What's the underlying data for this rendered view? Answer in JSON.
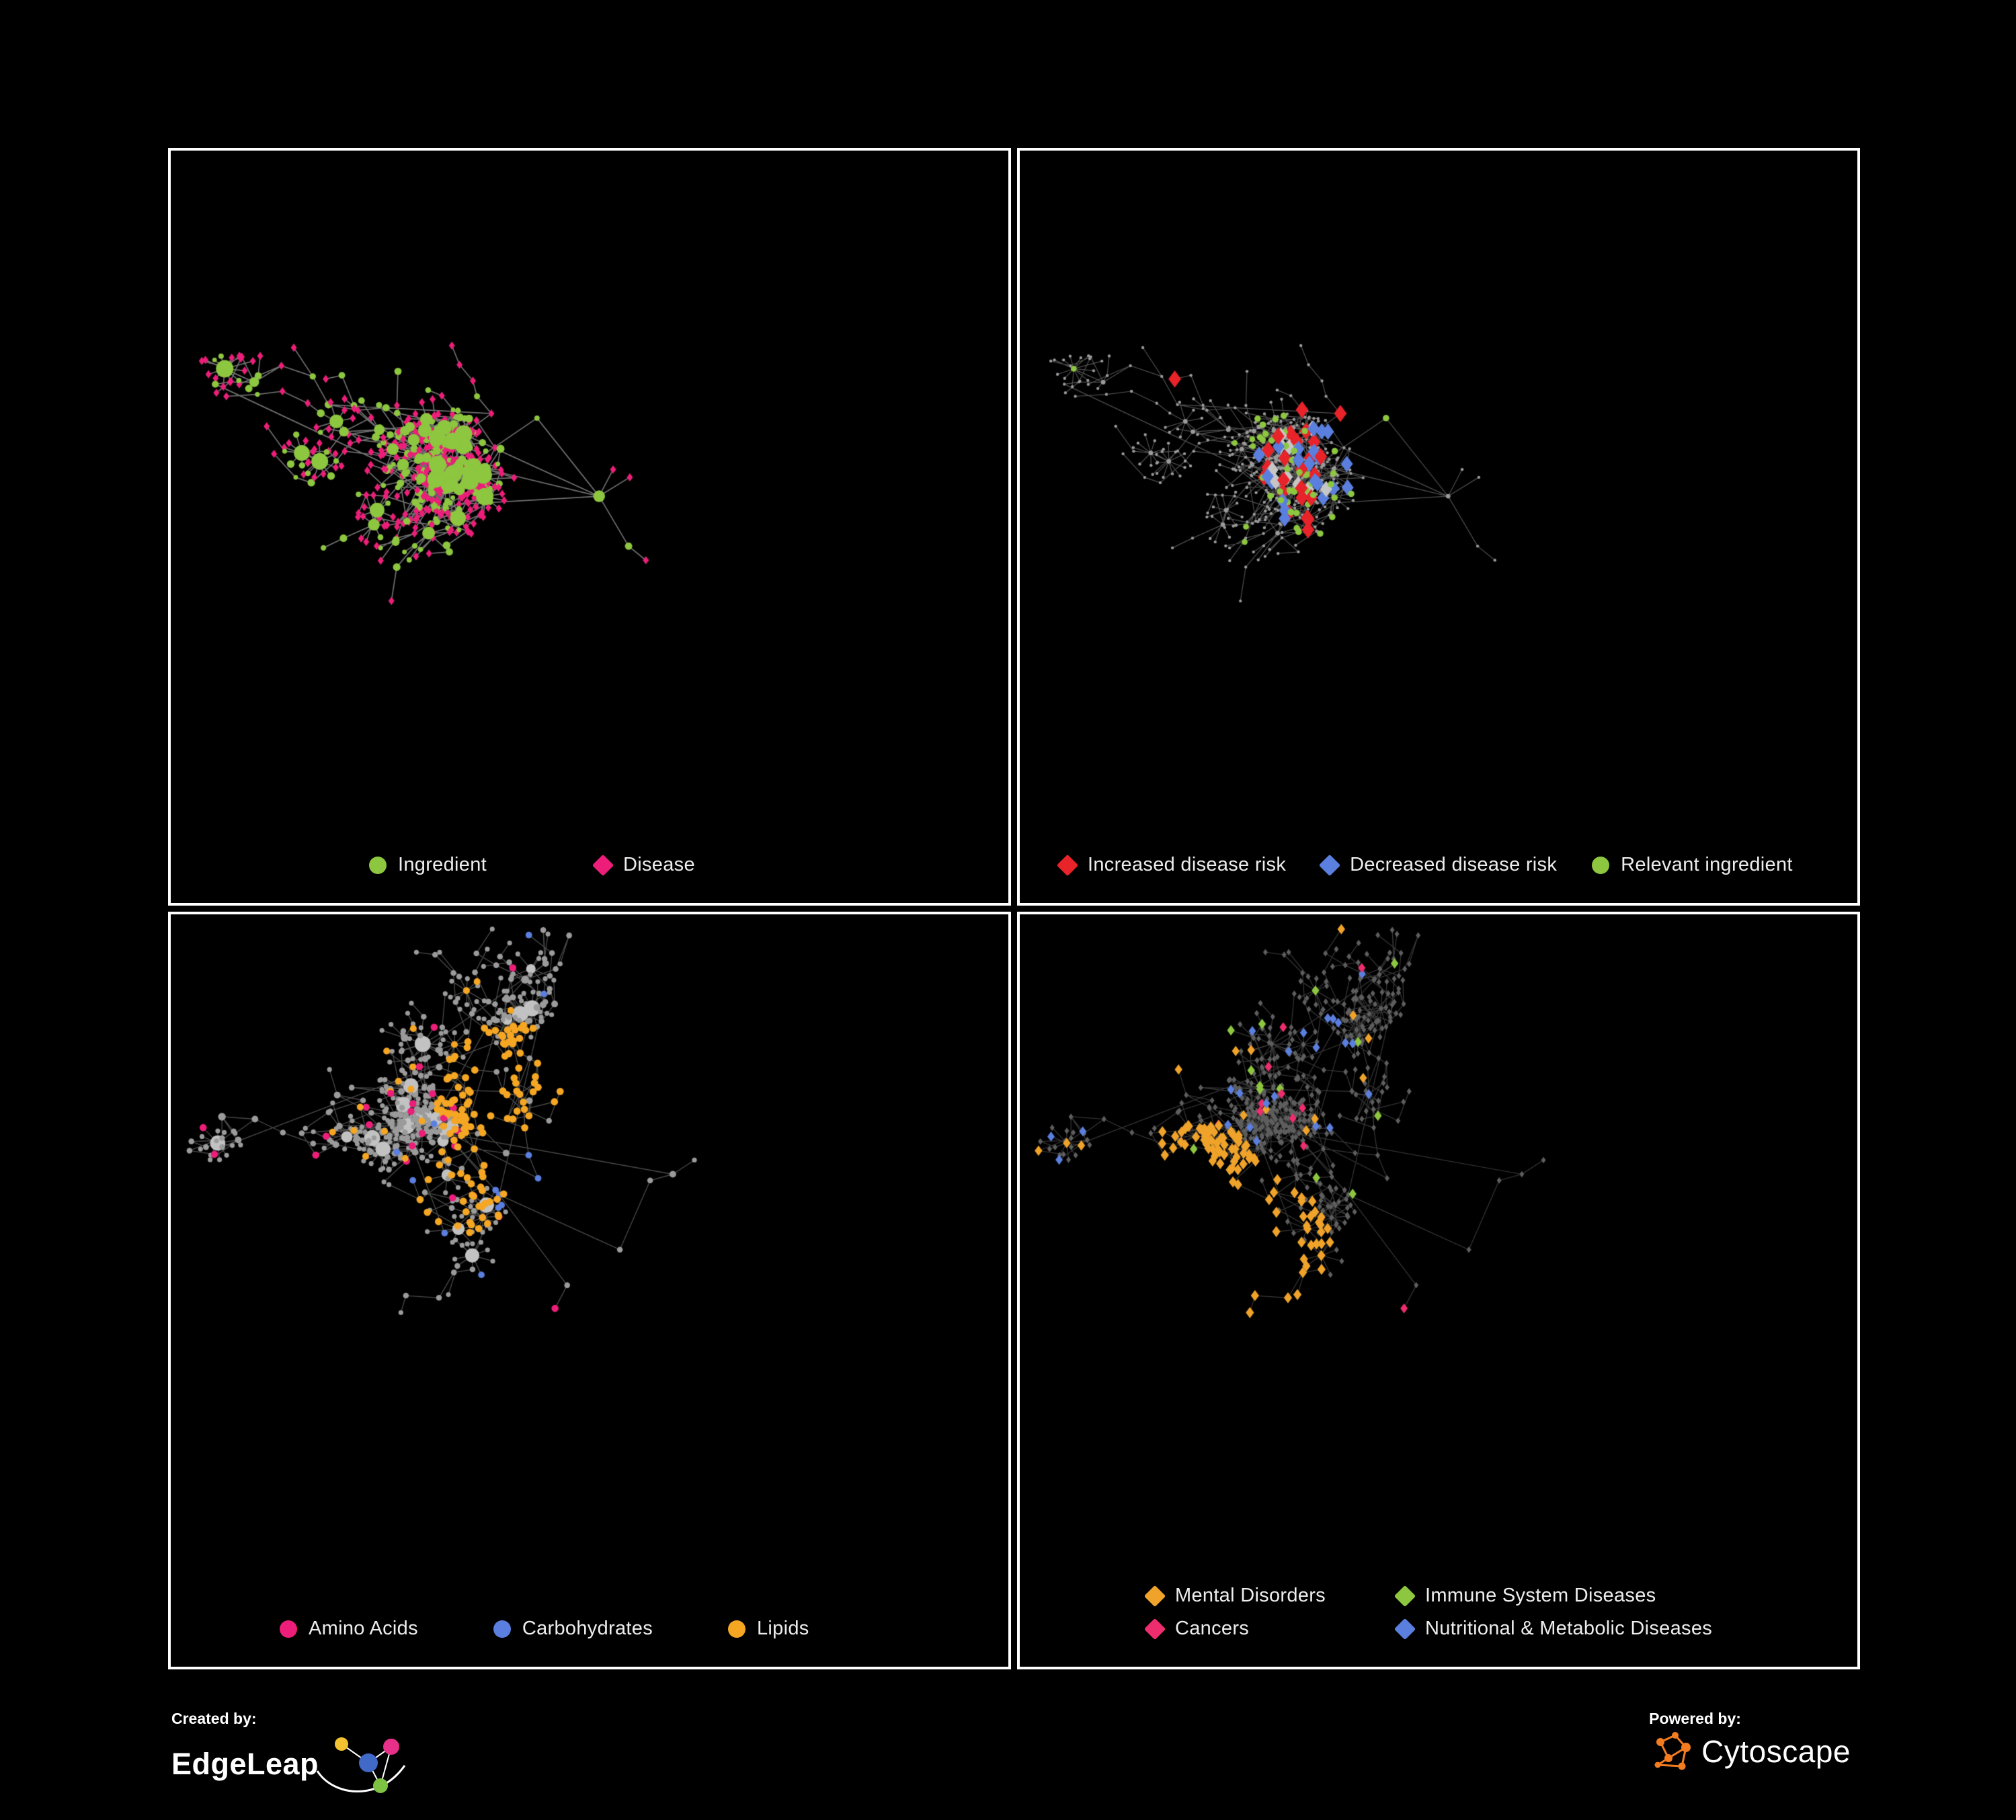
{
  "figure": {
    "background_color": "#000000",
    "panel_border_color": "#ffffff"
  },
  "panels": [
    {
      "name": "ingredient-disease",
      "legend": [
        {
          "label": "Ingredient",
          "shape": "circle",
          "color": "#8dc63f"
        },
        {
          "label": "Disease",
          "shape": "diamond",
          "color": "#ec1e79"
        }
      ]
    },
    {
      "name": "disease-risk",
      "legend": [
        {
          "label": "Increased disease risk",
          "shape": "diamond",
          "color": "#e8232a"
        },
        {
          "label": "Decreased disease risk",
          "shape": "diamond",
          "color": "#5b7fde"
        },
        {
          "label": "Relevant ingredient",
          "shape": "circle",
          "color": "#8dc63f"
        }
      ]
    },
    {
      "name": "macronutrients",
      "legend": [
        {
          "label": "Amino Acids",
          "shape": "circle",
          "color": "#ec1e79"
        },
        {
          "label": "Carbohydrates",
          "shape": "circle",
          "color": "#5b7fde"
        },
        {
          "label": "Lipids",
          "shape": "circle",
          "color": "#f5a623"
        }
      ]
    },
    {
      "name": "disease-categories",
      "legend": [
        {
          "label": "Mental Disorders",
          "shape": "diamond",
          "color": "#f0a32a"
        },
        {
          "label": "Immune System Diseases",
          "shape": "diamond",
          "color": "#8dc63f"
        },
        {
          "label": "Cancers",
          "shape": "diamond",
          "color": "#ed2d6e"
        },
        {
          "label": "Nutritional & Metabolic Diseases",
          "shape": "diamond",
          "color": "#5b7fde"
        }
      ]
    }
  ],
  "network_colors": {
    "edge_gray": "#8f8f8f",
    "edge_gray_dark": "#6f6f6f",
    "node_gray": "#9b9b9b",
    "hub_gray": "#c2c2c2",
    "dark_node_gray": "#5e5e5e",
    "neutral_highlight_diamond": "#c6c6c6"
  },
  "footer": {
    "created_by_label": "Created by:",
    "edgeleap_name": "EdgeLeap",
    "powered_by_label": "Powered by:",
    "cytoscape_name": "Cytoscape",
    "edgeleap_logo_colors": [
      "#f2c230",
      "#e6308a",
      "#4169c8",
      "#7dc242"
    ],
    "cytoscape_logo_color": "#f47c20"
  }
}
